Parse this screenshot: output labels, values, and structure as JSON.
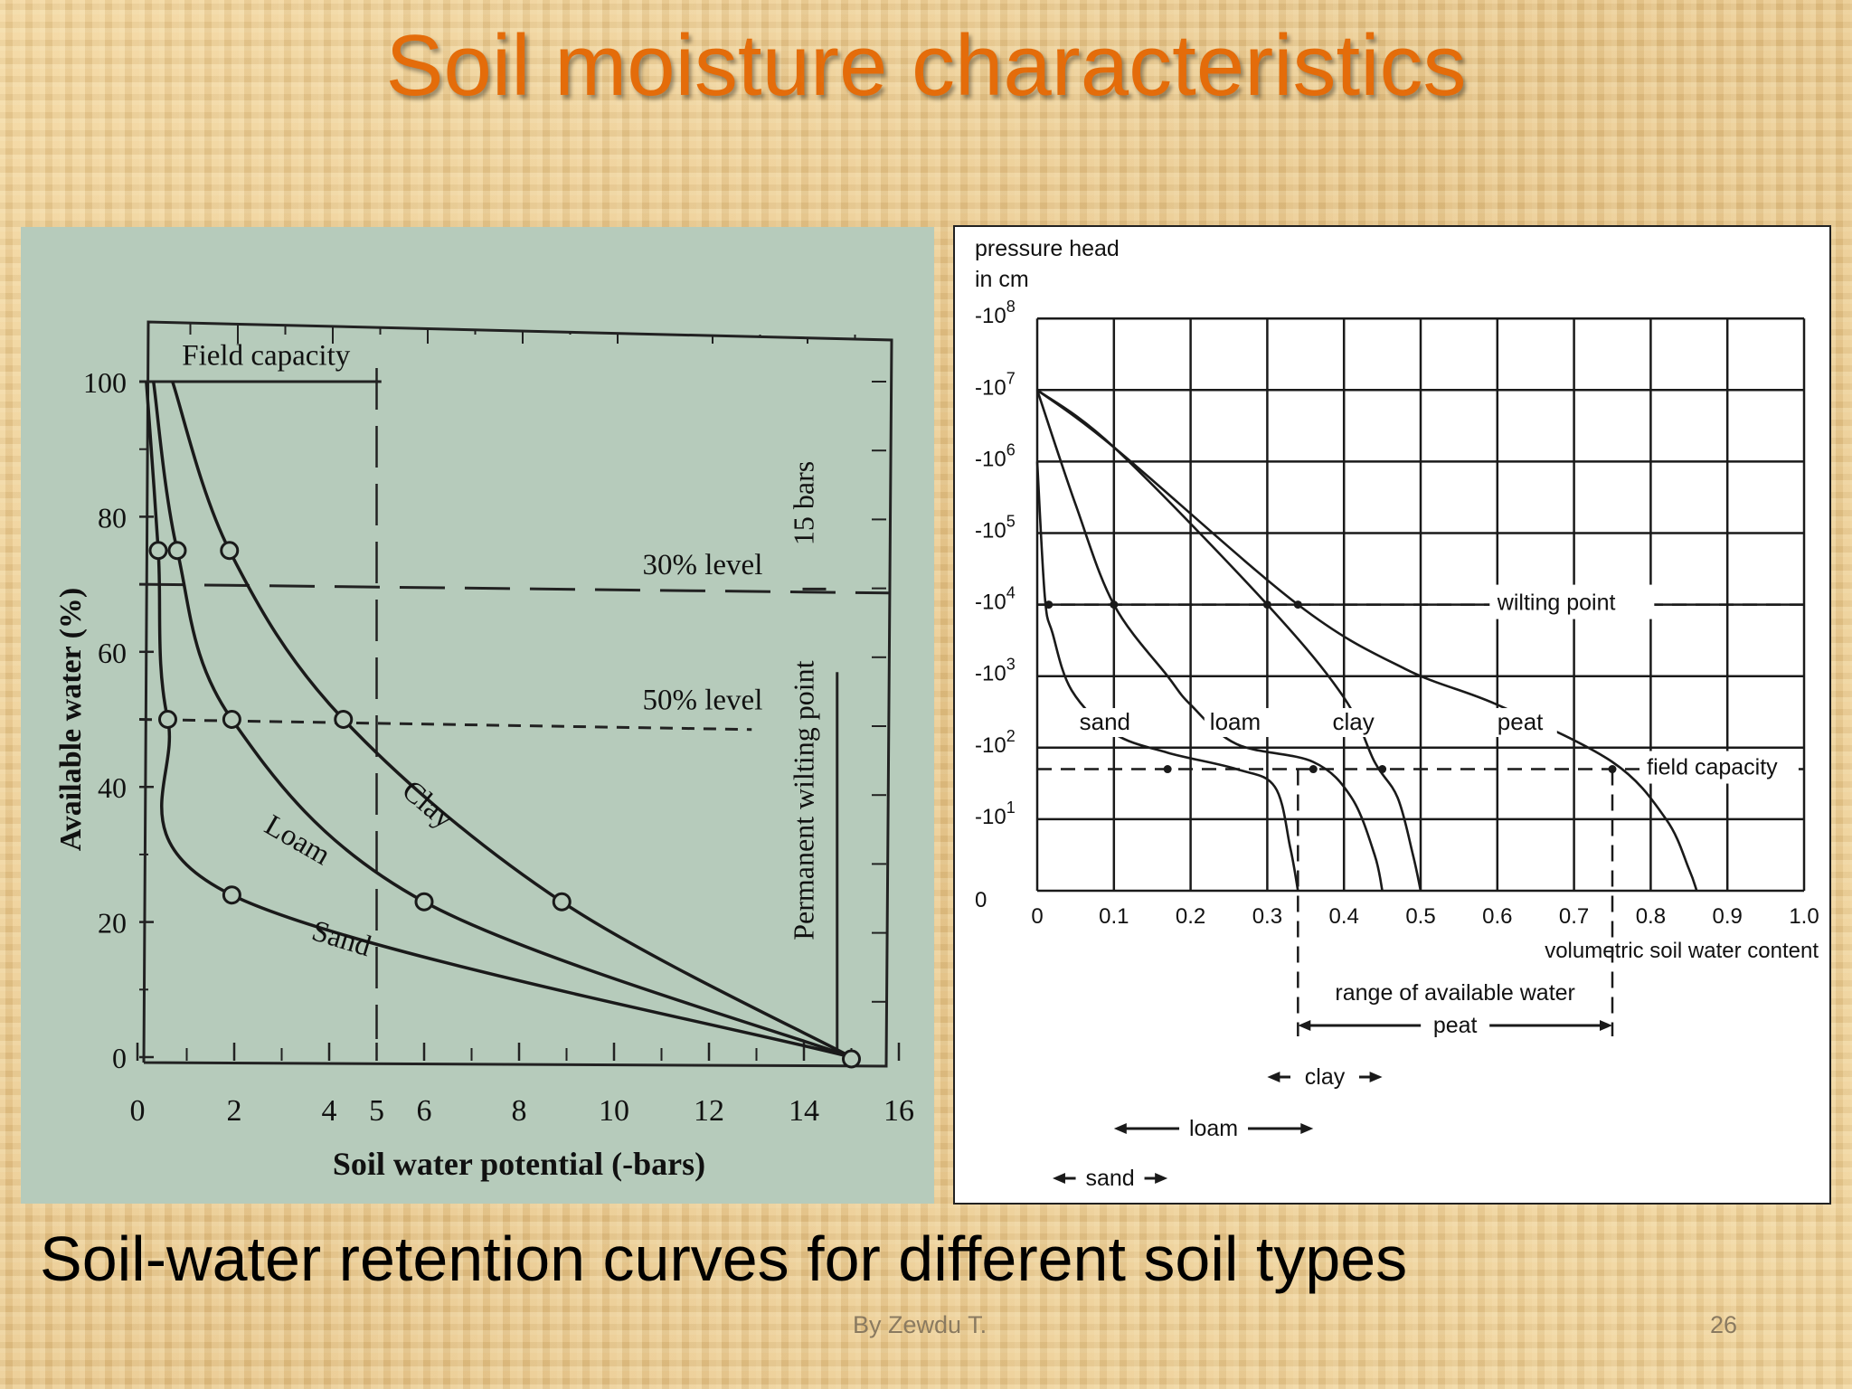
{
  "slide": {
    "title": "Soil moisture characteristics",
    "caption": "Soil-water retention curves for different soil types",
    "footer": "By Zewdu T.",
    "page_number": "26",
    "title_color": "#e46c0a"
  },
  "chart_data": [
    {
      "type": "line",
      "xlabel": "Soil water potential (-bars)",
      "ylabel": "Available water (%)",
      "xlim": [
        0,
        16
      ],
      "ylim": [
        0,
        100
      ],
      "x_ticks": [
        "0",
        "2",
        "4",
        "5",
        "6",
        "8",
        "10",
        "12",
        "14",
        "16"
      ],
      "y_ticks": [
        "0",
        "20",
        "40",
        "60",
        "80",
        "100"
      ],
      "annotations": {
        "field_capacity": "Field capacity",
        "level_30": "30% level",
        "level_50": "50% level",
        "wilting": "Permanent wilting point",
        "wilting_value": "15 bars"
      },
      "series": [
        {
          "name": "Clay",
          "points": [
            [
              0.7,
              100
            ],
            [
              1.9,
              75
            ],
            [
              4.3,
              50
            ],
            [
              8.9,
              23
            ],
            [
              15,
              0
            ]
          ]
        },
        {
          "name": "Loam",
          "points": [
            [
              0.3,
              100
            ],
            [
              0.8,
              75
            ],
            [
              1.95,
              50
            ],
            [
              6,
              23
            ],
            [
              15,
              0
            ]
          ]
        },
        {
          "name": "Sand",
          "points": [
            [
              0.15,
              100
            ],
            [
              0.4,
              75
            ],
            [
              0.6,
              50
            ],
            [
              1.95,
              24
            ],
            [
              15,
              0
            ]
          ]
        }
      ]
    },
    {
      "type": "line",
      "ylabel_lines": [
        "pressure head",
        "in cm"
      ],
      "xlabel": "volumetric soil water content",
      "xlim": [
        0,
        1.0
      ],
      "x_ticks": [
        "0",
        "0.1",
        "0.2",
        "0.3",
        "0.4",
        "0.5",
        "0.6",
        "0.7",
        "0.8",
        "0.9",
        "1.0"
      ],
      "y_ticks": [
        {
          "base": "-10",
          "exp": "8"
        },
        {
          "base": "-10",
          "exp": "7"
        },
        {
          "base": "-10",
          "exp": "6"
        },
        {
          "base": "-10",
          "exp": "5"
        },
        {
          "base": "-10",
          "exp": "4"
        },
        {
          "base": "-10",
          "exp": "3"
        },
        {
          "base": "-10",
          "exp": "2"
        },
        {
          "base": "-10",
          "exp": "1"
        },
        {
          "base": "0",
          "exp": ""
        }
      ],
      "annotations": {
        "wilting": "wilting point",
        "field_capacity": "field capacity",
        "range_line1": "range of available water",
        "range_line2": "peat",
        "range_clay": "clay",
        "range_loam": "loam",
        "range_sand": "sand"
      },
      "series_labels": [
        "sand",
        "loam",
        "clay",
        "peat"
      ],
      "ranges": {
        "sand": [
          0.02,
          0.17
        ],
        "loam": [
          0.1,
          0.36
        ],
        "clay": [
          0.3,
          0.45
        ],
        "peat": [
          0.34,
          0.75
        ]
      },
      "series": [
        {
          "name": "sand",
          "points": [
            [
              0,
              6
            ],
            [
              0.01,
              4.1
            ],
            [
              0.02,
              3.6
            ],
            [
              0.045,
              2.8
            ],
            [
              0.1,
              2.2
            ],
            [
              0.17,
              1.93
            ],
            [
              0.26,
              1.7
            ],
            [
              0.31,
              1.45
            ],
            [
              0.33,
              0.6
            ],
            [
              0.34,
              0
            ]
          ]
        },
        {
          "name": "loam",
          "points": [
            [
              0,
              7
            ],
            [
              0.05,
              5.4
            ],
            [
              0.1,
              4
            ],
            [
              0.17,
              3.0
            ],
            [
              0.2,
              2.6
            ],
            [
              0.26,
              2.05
            ],
            [
              0.36,
              1.8
            ],
            [
              0.41,
              1.3
            ],
            [
              0.44,
              0.5
            ],
            [
              0.45,
              0
            ]
          ]
        },
        {
          "name": "clay",
          "points": [
            [
              0,
              7
            ],
            [
              0.1,
              6.2
            ],
            [
              0.3,
              4
            ],
            [
              0.4,
              2.7
            ],
            [
              0.44,
              1.8
            ],
            [
              0.47,
              1.3
            ],
            [
              0.49,
              0.5
            ],
            [
              0.5,
              0
            ]
          ]
        },
        {
          "name": "peat",
          "points": [
            [
              0,
              7
            ],
            [
              0.1,
              6.2
            ],
            [
              0.34,
              4
            ],
            [
              0.48,
              3.1
            ],
            [
              0.6,
              2.6
            ],
            [
              0.75,
              1.8
            ],
            [
              0.82,
              1.0
            ],
            [
              0.85,
              0.3
            ],
            [
              0.86,
              0
            ]
          ]
        }
      ]
    }
  ]
}
